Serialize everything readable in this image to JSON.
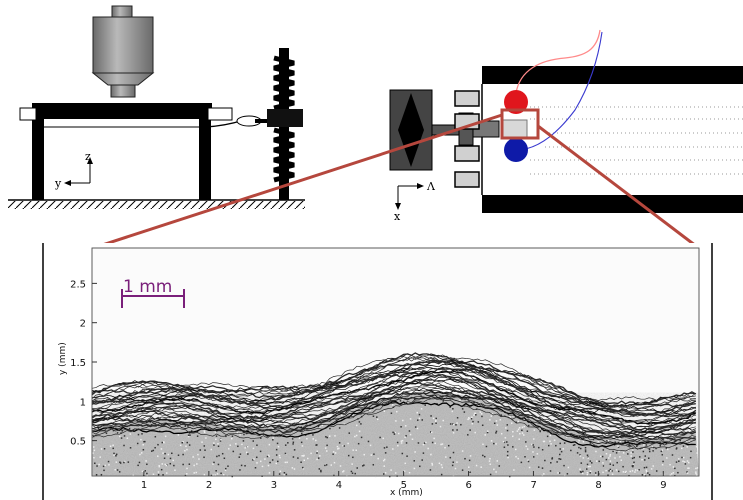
{
  "side_view": {
    "axis_z": "z",
    "axis_y": "y"
  },
  "top_view": {
    "axis_x": "x",
    "axis_lambda": "Λ"
  },
  "micrograph": {
    "scale_bar_label": "1 mm",
    "x_axis_label": "x (mm)",
    "y_axis_label": "y (mm)",
    "x_ticks": [
      "1",
      "2",
      "3",
      "4",
      "5",
      "6",
      "7",
      "8",
      "9"
    ],
    "y_ticks": [
      "0.5",
      "1",
      "1.5",
      "2",
      "2.5"
    ]
  },
  "colors": {
    "zoom_outline": "#b5473d",
    "scale_bar": "#7a1f7a",
    "red_marker": "#e0161d",
    "blue_marker": "#0e1aa8"
  }
}
